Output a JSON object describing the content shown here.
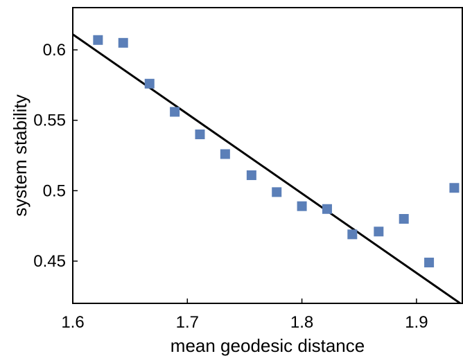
{
  "chart_data": {
    "type": "scatter",
    "title": "",
    "xlabel": "mean geodesic distance",
    "ylabel": "system stability",
    "xlim": [
      1.6,
      1.94
    ],
    "ylim": [
      0.42,
      0.63
    ],
    "xticks": [
      1.6,
      1.7,
      1.8,
      1.9
    ],
    "xtick_labels": [
      "1.6",
      "1.7",
      "1.8",
      "1.9"
    ],
    "yticks": [
      0.45,
      0.5,
      0.55,
      0.6
    ],
    "ytick_labels": [
      "0.45",
      "0.5",
      "0.55",
      "0.6"
    ],
    "grid": false,
    "legend": "none",
    "points": [
      {
        "x": 1.622,
        "y": 0.607
      },
      {
        "x": 1.644,
        "y": 0.605
      },
      {
        "x": 1.667,
        "y": 0.576
      },
      {
        "x": 1.689,
        "y": 0.556
      },
      {
        "x": 1.711,
        "y": 0.54
      },
      {
        "x": 1.733,
        "y": 0.526
      },
      {
        "x": 1.756,
        "y": 0.511
      },
      {
        "x": 1.778,
        "y": 0.499
      },
      {
        "x": 1.8,
        "y": 0.489
      },
      {
        "x": 1.822,
        "y": 0.487
      },
      {
        "x": 1.844,
        "y": 0.469
      },
      {
        "x": 1.867,
        "y": 0.471
      },
      {
        "x": 1.889,
        "y": 0.48
      },
      {
        "x": 1.911,
        "y": 0.449
      },
      {
        "x": 1.933,
        "y": 0.502
      }
    ],
    "fit_line": {
      "x": [
        1.6,
        1.94
      ],
      "y": [
        0.611,
        0.419
      ]
    },
    "colors": {
      "marker": "#5b7fb8",
      "line": "#000000"
    }
  }
}
